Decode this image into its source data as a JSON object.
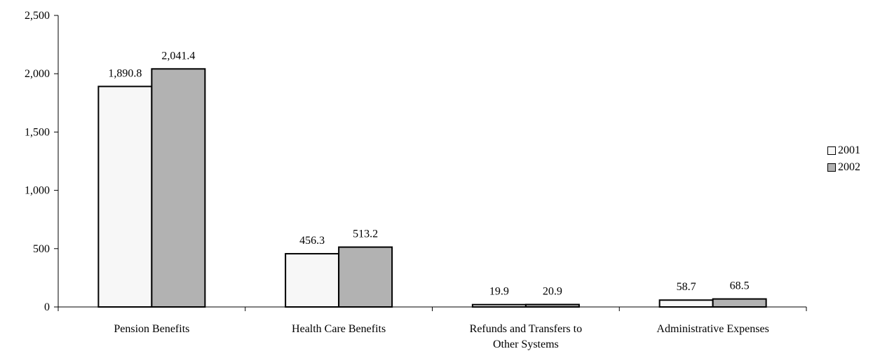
{
  "chart_data": {
    "type": "bar",
    "categories": [
      [
        "Pension Benefits"
      ],
      [
        "Health Care Benefits"
      ],
      [
        "Refunds and Transfers to",
        "Other Systems"
      ],
      [
        "Administrative Expenses"
      ]
    ],
    "series": [
      {
        "name": "2001",
        "values": [
          1890.8,
          456.3,
          19.9,
          58.7
        ],
        "labels": [
          "1,890.8",
          "456.3",
          "19.9",
          "58.7"
        ],
        "color": "#f7f7f7"
      },
      {
        "name": "2002",
        "values": [
          2041.4,
          513.2,
          20.9,
          68.5
        ],
        "labels": [
          "2,041.4",
          "513.2",
          "20.9",
          "68.5"
        ],
        "color": "#b2b2b2"
      }
    ],
    "yticks": [
      0,
      500,
      1000,
      1500,
      2000,
      2500
    ],
    "ytick_labels": [
      "0",
      "500",
      "1,000",
      "1,500",
      "2,000",
      "2,500"
    ],
    "ylim": [
      0,
      2500
    ],
    "title": "",
    "xlabel": "",
    "ylabel": "",
    "grid": false,
    "legend_position": "right"
  },
  "legend": {
    "items": [
      {
        "label": "2001",
        "color": "#f7f7f7"
      },
      {
        "label": "2002",
        "color": "#b2b2b2"
      }
    ]
  }
}
